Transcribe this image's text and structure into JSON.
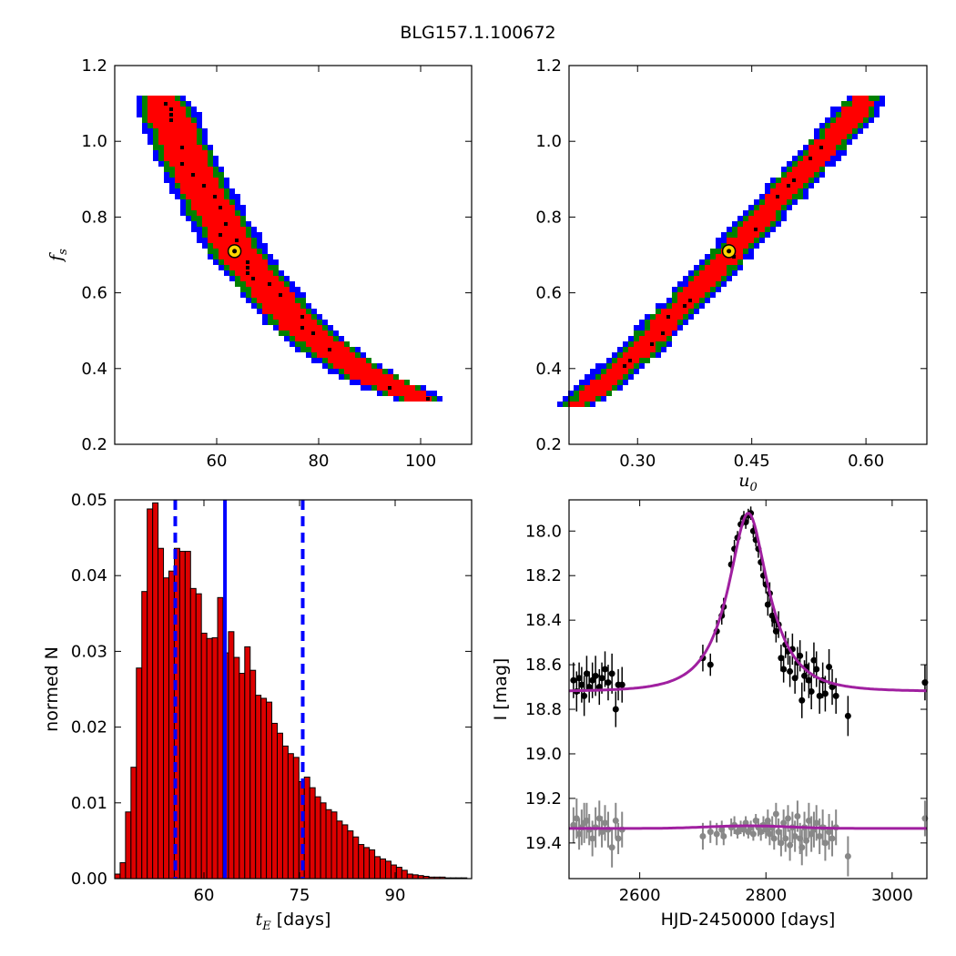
{
  "figure": {
    "title": "BLG157.1.100672"
  },
  "colors": {
    "sigma1": "#ff0000",
    "sigma2": "#008000",
    "sigma3": "#0000ff",
    "samples": "#000000",
    "best": "#ffd700",
    "hist_fill": "#dd0000",
    "hist_line": "#0000ff",
    "model": "#a020a0",
    "data_main": "#000000",
    "data_resid": "#888888"
  },
  "chart_data": [
    {
      "type": "heatmap",
      "panel": "tE-fs",
      "title": "",
      "xlabel": "",
      "ylabel_var": "f",
      "ylabel_sub": "s",
      "xlim": [
        40,
        110
      ],
      "ylim": [
        0.2,
        1.2
      ],
      "xticks": [
        60,
        80,
        100
      ],
      "yticks": [
        0.2,
        0.4,
        0.6,
        0.8,
        1.0,
        1.2
      ],
      "ytick_labels": [
        "0.2",
        "0.4",
        "0.6",
        "0.8",
        "1.0",
        "1.2"
      ],
      "ridge": [
        [
          49,
          1.12
        ],
        [
          52,
          1.02
        ],
        [
          55,
          0.93
        ],
        [
          58,
          0.85
        ],
        [
          61,
          0.78
        ],
        [
          64,
          0.71
        ],
        [
          68,
          0.64
        ],
        [
          73,
          0.56
        ],
        [
          78,
          0.49
        ],
        [
          84,
          0.43
        ],
        [
          90,
          0.38
        ],
        [
          96,
          0.34
        ],
        [
          102,
          0.31
        ]
      ],
      "best_fit": {
        "x": 63.5,
        "y": 0.71
      },
      "legend": "none",
      "grid": false
    },
    {
      "type": "heatmap",
      "panel": "u0-fs",
      "title": "",
      "xlabel_var": "u",
      "xlabel_sub": "0",
      "xlim": [
        0.21,
        0.68
      ],
      "ylim": [
        0.2,
        1.2
      ],
      "xticks": [
        0.3,
        0.45,
        0.6
      ],
      "xtick_labels": [
        "0.30",
        "0.45",
        "0.60"
      ],
      "yticks": [
        0.2,
        0.4,
        0.6,
        0.8,
        1.0,
        1.2
      ],
      "ytick_labels": [
        "0.2",
        "0.4",
        "0.6",
        "0.8",
        "1.0",
        "1.2"
      ],
      "ridge": [
        [
          0.22,
          0.3
        ],
        [
          0.26,
          0.37
        ],
        [
          0.3,
          0.44
        ],
        [
          0.34,
          0.53
        ],
        [
          0.38,
          0.61
        ],
        [
          0.42,
          0.7
        ],
        [
          0.46,
          0.79
        ],
        [
          0.5,
          0.88
        ],
        [
          0.54,
          0.97
        ],
        [
          0.58,
          1.06
        ],
        [
          0.6,
          1.12
        ]
      ],
      "best_fit": {
        "x": 0.42,
        "y": 0.71
      },
      "legend": "none",
      "grid": false
    },
    {
      "type": "bar",
      "panel": "tE-histogram",
      "title": "",
      "xlabel_var": "t",
      "xlabel_sub": "E",
      "xlabel_unit": " [days]",
      "ylabel": "normed N",
      "xlim": [
        46,
        102
      ],
      "ylim": [
        0,
        0.05
      ],
      "xticks": [
        60,
        75,
        90
      ],
      "xtick_labels": [
        "60",
        "75",
        "90"
      ],
      "yticks": [
        0,
        0.01,
        0.02,
        0.03,
        0.04,
        0.05
      ],
      "ytick_labels": [
        "0.00",
        "0.01",
        "0.02",
        "0.03",
        "0.04",
        "0.05"
      ],
      "bin_start": 46,
      "bin_width": 0.85,
      "values": [
        0.0006,
        0.0021,
        0.0088,
        0.0147,
        0.0278,
        0.0379,
        0.0488,
        0.0496,
        0.0436,
        0.0397,
        0.0406,
        0.0436,
        0.0432,
        0.0432,
        0.0383,
        0.0376,
        0.0324,
        0.0317,
        0.0318,
        0.0371,
        0.0298,
        0.0326,
        0.0292,
        0.0271,
        0.0306,
        0.0275,
        0.0242,
        0.0238,
        0.0233,
        0.0205,
        0.0192,
        0.0175,
        0.0165,
        0.016,
        0.0128,
        0.0134,
        0.012,
        0.0108,
        0.01,
        0.0091,
        0.0088,
        0.0076,
        0.0071,
        0.0063,
        0.0055,
        0.0045,
        0.0041,
        0.0038,
        0.0029,
        0.0026,
        0.0023,
        0.0018,
        0.0015,
        0.0011,
        0.0006,
        0.0005,
        0.0004,
        0.0003,
        0.0002,
        0.0002,
        0.0002,
        0.0001,
        0.0001,
        0.0001,
        0.0001
      ],
      "median": 63.3,
      "percentiles": [
        55.5,
        75.5
      ],
      "legend": "none",
      "grid": false
    },
    {
      "type": "scatter",
      "panel": "lightcurve",
      "title": "",
      "xlabel": "HJD-2450000 [days]",
      "ylabel": "I [mag]",
      "xlim": [
        2488,
        3055
      ],
      "ylim": [
        19.56,
        17.86
      ],
      "y_inverted": true,
      "xticks": [
        2600,
        2800,
        3000
      ],
      "xtick_labels": [
        "2600",
        "2800",
        "3000"
      ],
      "yticks": [
        18.0,
        18.2,
        18.4,
        18.6,
        18.8,
        19.0,
        19.2,
        19.4
      ],
      "ytick_labels": [
        "18.0",
        "18.2",
        "18.4",
        "18.6",
        "18.8",
        "19.0",
        "19.2",
        "19.4"
      ],
      "model": {
        "t0": 2772,
        "tE": 63,
        "u0": 0.42,
        "fs": 0.71,
        "I_base": 18.72
      },
      "resid_model": {
        "I_base": 19.335,
        "amp": -0.012
      },
      "series": [
        {
          "points": [
            [
              2495,
              18.67,
              0.08
            ],
            [
              2500,
              18.72,
              0.09
            ],
            [
              2504,
              18.66,
              0.07
            ],
            [
              2508,
              18.69,
              0.08
            ],
            [
              2512,
              18.74,
              0.09
            ],
            [
              2516,
              18.64,
              0.08
            ],
            [
              2520,
              18.7,
              0.07
            ],
            [
              2525,
              18.67,
              0.08
            ],
            [
              2530,
              18.65,
              0.09
            ],
            [
              2536,
              18.7,
              0.08
            ],
            [
              2540,
              18.66,
              0.07
            ],
            [
              2545,
              18.62,
              0.08
            ],
            [
              2550,
              18.68,
              0.08
            ],
            [
              2556,
              18.64,
              0.09
            ],
            [
              2562,
              18.8,
              0.08
            ],
            [
              2566,
              18.69,
              0.07
            ],
            [
              2572,
              18.69,
              0.08
            ],
            [
              2700,
              18.57,
              0.06
            ],
            [
              2712,
              18.6,
              0.05
            ],
            [
              2722,
              18.45,
              0.05
            ],
            [
              2730,
              18.38,
              0.04
            ],
            [
              2733,
              18.34,
              0.04
            ],
            [
              2745,
              18.15,
              0.04
            ],
            [
              2750,
              18.08,
              0.04
            ],
            [
              2755,
              18.03,
              0.03
            ],
            [
              2760,
              17.97,
              0.03
            ],
            [
              2765,
              17.94,
              0.03
            ],
            [
              2768,
              17.96,
              0.03
            ],
            [
              2772,
              17.93,
              0.03
            ],
            [
              2776,
              17.92,
              0.03
            ],
            [
              2780,
              18.0,
              0.03
            ],
            [
              2784,
              18.04,
              0.03
            ],
            [
              2788,
              18.08,
              0.04
            ],
            [
              2792,
              18.14,
              0.04
            ],
            [
              2796,
              18.2,
              0.04
            ],
            [
              2800,
              18.24,
              0.04
            ],
            [
              2803,
              18.33,
              0.05
            ],
            [
              2806,
              18.28,
              0.05
            ],
            [
              2810,
              18.38,
              0.05
            ],
            [
              2813,
              18.4,
              0.05
            ],
            [
              2816,
              18.45,
              0.05
            ],
            [
              2820,
              18.42,
              0.06
            ],
            [
              2824,
              18.57,
              0.06
            ],
            [
              2828,
              18.62,
              0.06
            ],
            [
              2831,
              18.51,
              0.06
            ],
            [
              2835,
              18.54,
              0.06
            ],
            [
              2838,
              18.63,
              0.07
            ],
            [
              2842,
              18.53,
              0.07
            ],
            [
              2846,
              18.66,
              0.07
            ],
            [
              2850,
              18.59,
              0.07
            ],
            [
              2854,
              18.56,
              0.07
            ],
            [
              2857,
              18.76,
              0.08
            ],
            [
              2861,
              18.65,
              0.07
            ],
            [
              2864,
              18.61,
              0.07
            ],
            [
              2868,
              18.67,
              0.08
            ],
            [
              2872,
              18.72,
              0.08
            ],
            [
              2876,
              18.58,
              0.08
            ],
            [
              2880,
              18.62,
              0.08
            ],
            [
              2885,
              18.74,
              0.08
            ],
            [
              2890,
              18.67,
              0.08
            ],
            [
              2894,
              18.73,
              0.08
            ],
            [
              2900,
              18.61,
              0.08
            ],
            [
              2905,
              18.7,
              0.08
            ],
            [
              2911,
              18.74,
              0.08
            ],
            [
              2930,
              18.83,
              0.09
            ],
            [
              3052,
              18.68,
              0.08
            ]
          ],
          "residuals": [
            [
              2495,
              19.32,
              0.08
            ],
            [
              2500,
              19.29,
              0.09
            ],
            [
              2504,
              19.36,
              0.07
            ],
            [
              2508,
              19.33,
              0.08
            ],
            [
              2512,
              19.31,
              0.09
            ],
            [
              2516,
              19.3,
              0.08
            ],
            [
              2520,
              19.34,
              0.07
            ],
            [
              2525,
              19.38,
              0.08
            ],
            [
              2530,
              19.33,
              0.09
            ],
            [
              2536,
              19.29,
              0.08
            ],
            [
              2540,
              19.35,
              0.07
            ],
            [
              2545,
              19.31,
              0.08
            ],
            [
              2550,
              19.34,
              0.08
            ],
            [
              2556,
              19.42,
              0.09
            ],
            [
              2562,
              19.3,
              0.08
            ],
            [
              2566,
              19.38,
              0.07
            ],
            [
              2572,
              19.34,
              0.08
            ],
            [
              2700,
              19.37,
              0.06
            ],
            [
              2712,
              19.35,
              0.05
            ],
            [
              2722,
              19.36,
              0.05
            ],
            [
              2730,
              19.34,
              0.04
            ],
            [
              2733,
              19.37,
              0.04
            ],
            [
              2745,
              19.33,
              0.04
            ],
            [
              2750,
              19.32,
              0.04
            ],
            [
              2755,
              19.35,
              0.03
            ],
            [
              2760,
              19.33,
              0.03
            ],
            [
              2765,
              19.34,
              0.03
            ],
            [
              2768,
              19.31,
              0.03
            ],
            [
              2772,
              19.35,
              0.03
            ],
            [
              2776,
              19.33,
              0.03
            ],
            [
              2780,
              19.36,
              0.03
            ],
            [
              2784,
              19.3,
              0.03
            ],
            [
              2788,
              19.33,
              0.04
            ],
            [
              2792,
              19.35,
              0.04
            ],
            [
              2796,
              19.32,
              0.04
            ],
            [
              2800,
              19.34,
              0.04
            ],
            [
              2803,
              19.3,
              0.05
            ],
            [
              2806,
              19.36,
              0.05
            ],
            [
              2810,
              19.33,
              0.05
            ],
            [
              2813,
              19.38,
              0.05
            ],
            [
              2816,
              19.27,
              0.05
            ],
            [
              2820,
              19.35,
              0.06
            ],
            [
              2824,
              19.4,
              0.06
            ],
            [
              2828,
              19.31,
              0.06
            ],
            [
              2831,
              19.38,
              0.06
            ],
            [
              2835,
              19.29,
              0.06
            ],
            [
              2838,
              19.41,
              0.07
            ],
            [
              2842,
              19.33,
              0.07
            ],
            [
              2846,
              19.37,
              0.07
            ],
            [
              2850,
              19.28,
              0.07
            ],
            [
              2854,
              19.38,
              0.07
            ],
            [
              2857,
              19.42,
              0.08
            ],
            [
              2861,
              19.33,
              0.07
            ],
            [
              2864,
              19.39,
              0.07
            ],
            [
              2868,
              19.3,
              0.08
            ],
            [
              2872,
              19.36,
              0.08
            ],
            [
              2876,
              19.34,
              0.08
            ],
            [
              2880,
              19.31,
              0.08
            ],
            [
              2885,
              19.37,
              0.08
            ],
            [
              2890,
              19.33,
              0.08
            ],
            [
              2894,
              19.4,
              0.08
            ],
            [
              2900,
              19.35,
              0.08
            ],
            [
              2905,
              19.38,
              0.08
            ],
            [
              2911,
              19.33,
              0.08
            ],
            [
              2930,
              19.46,
              0.09
            ],
            [
              3052,
              19.29,
              0.08
            ]
          ]
        }
      ],
      "legend": "none",
      "grid": false
    }
  ]
}
